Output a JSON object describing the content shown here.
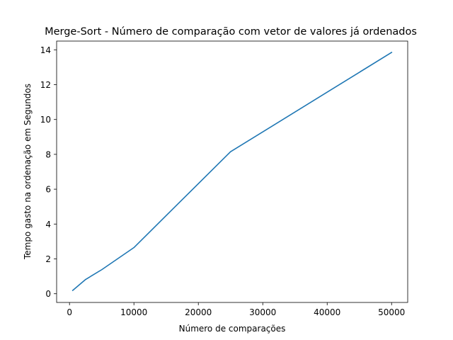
{
  "chart_data": {
    "type": "line",
    "title": "Merge-Sort - Número de comparação com vetor de valores já ordenados",
    "xlabel": "Número de comparações",
    "ylabel": "Tempo gasto na ordenação  em Segundos",
    "x": [
      500,
      2500,
      5000,
      10000,
      25000,
      50000
    ],
    "series": [
      {
        "values": [
          0.19,
          0.82,
          1.38,
          2.65,
          8.15,
          13.85
        ],
        "color": "#1f77b4"
      }
    ],
    "xlim": [
      -2000,
      52500
    ],
    "ylim": [
      -0.5,
      14.5
    ],
    "xticks": [
      0,
      10000,
      20000,
      30000,
      40000,
      50000
    ],
    "yticks": [
      0,
      2,
      4,
      6,
      8,
      10,
      12,
      14
    ],
    "grid": false,
    "legend": false
  }
}
